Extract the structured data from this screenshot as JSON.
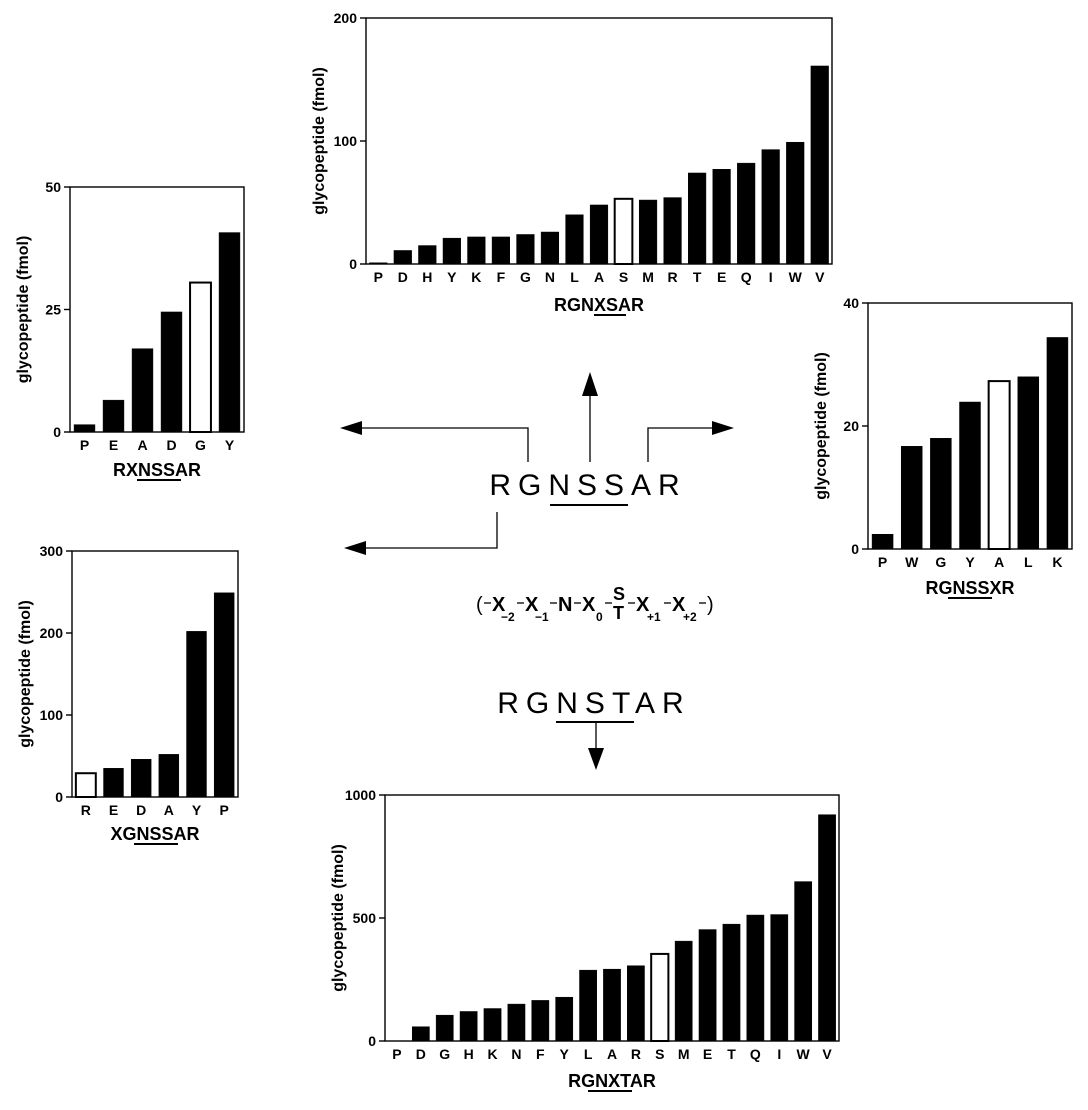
{
  "chart_data": [
    {
      "id": "top",
      "type": "bar",
      "label": "RGNXSAR",
      "ylabel": "glycopeptide (fmol)",
      "ylim": [
        0,
        200
      ],
      "yticks": [
        0,
        100,
        200
      ],
      "categories": [
        "P",
        "D",
        "H",
        "Y",
        "K",
        "F",
        "G",
        "N",
        "L",
        "A",
        "S",
        "M",
        "R",
        "T",
        "E",
        "Q",
        "I",
        "W",
        "V"
      ],
      "values": [
        1,
        11,
        15,
        21,
        22,
        22,
        24,
        26,
        40,
        48,
        53,
        52,
        54,
        74,
        77,
        82,
        93,
        99,
        161
      ],
      "open": [
        "S"
      ]
    },
    {
      "id": "left-top",
      "type": "bar",
      "label": "RXNSSAR",
      "ylabel": "glycopeptide (fmol)",
      "ylim": [
        0,
        50
      ],
      "yticks": [
        0,
        25,
        50
      ],
      "categories": [
        "P",
        "E",
        "A",
        "D",
        "G",
        "Y"
      ],
      "values": [
        1.5,
        6.5,
        17,
        24.5,
        30.5,
        40.7
      ],
      "open": [
        "G"
      ]
    },
    {
      "id": "right",
      "type": "bar",
      "label": "RGNSSXR",
      "ylabel": "glycopeptide (fmol)",
      "ylim": [
        0,
        40
      ],
      "yticks": [
        0,
        20,
        40
      ],
      "categories": [
        "P",
        "W",
        "G",
        "Y",
        "A",
        "L",
        "K"
      ],
      "values": [
        2.4,
        16.7,
        18,
        23.9,
        27.3,
        28,
        34.4
      ],
      "open": [
        "A"
      ]
    },
    {
      "id": "left-bottom",
      "type": "bar",
      "label": "XGNSSAR",
      "ylabel": "glycopeptide (fmol)",
      "ylim": [
        0,
        300
      ],
      "yticks": [
        0,
        100,
        200,
        300
      ],
      "categories": [
        "R",
        "E",
        "D",
        "A",
        "Y",
        "P"
      ],
      "values": [
        29,
        35,
        46,
        52,
        202,
        249
      ],
      "open": [
        "R"
      ]
    },
    {
      "id": "bottom",
      "type": "bar",
      "label": "RGNXTAR",
      "ylabel": "glycopeptide (fmol)",
      "ylim": [
        0,
        1000
      ],
      "yticks": [
        0,
        500,
        1000
      ],
      "categories": [
        "P",
        "D",
        "G",
        "H",
        "K",
        "N",
        "F",
        "Y",
        "L",
        "A",
        "R",
        "S",
        "M",
        "E",
        "T",
        "Q",
        "I",
        "W",
        "V"
      ],
      "values": [
        0,
        58,
        105,
        120,
        132,
        150,
        165,
        178,
        288,
        292,
        306,
        354,
        406,
        453,
        475,
        512,
        514,
        648,
        920
      ],
      "open": [
        "S"
      ]
    }
  ],
  "center": {
    "sequence_top": "RGNSSAR",
    "sequence_bottom": "RGNSTAR",
    "formula": {
      "open_paren": "(",
      "close_paren": ")",
      "x_minus2": "X",
      "x_minus2_sub": "−2",
      "x_minus1": "X",
      "x_minus1_sub": "−1",
      "n": "N",
      "x0": "X",
      "x0_sub": "0",
      "s": "S",
      "t": "T",
      "x_plus1": "X",
      "x_plus1_sub": "+1",
      "x_plus2": "X",
      "x_plus2_sub": "+2"
    }
  }
}
